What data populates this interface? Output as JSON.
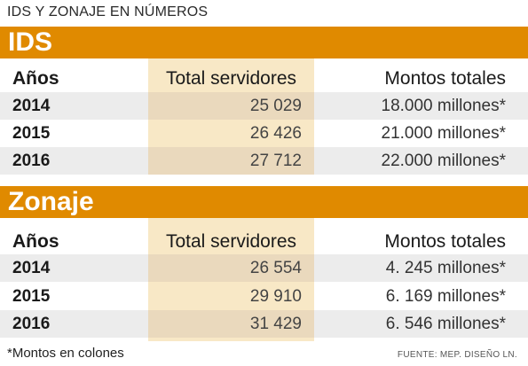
{
  "title": "IDS Y ZONAJE EN NÚMEROS",
  "colors": {
    "accent": "#e08a00",
    "highlight_column": "#f8e8c6",
    "row_shade": "#ececec"
  },
  "chart_data": [
    {
      "type": "table",
      "title": "IDS",
      "columns": [
        "Años",
        "Total servidores",
        "Montos totales"
      ],
      "rows": [
        {
          "year": "2014",
          "servidores": "25 029",
          "montos": "18.000 millones*"
        },
        {
          "year": "2015",
          "servidores": "26 426",
          "montos": "21.000 millones*"
        },
        {
          "year": "2016",
          "servidores": "27 712",
          "montos": "22.000 millones*"
        }
      ]
    },
    {
      "type": "table",
      "title": "Zonaje",
      "columns": [
        "Años",
        "Total servidores",
        "Montos totales"
      ],
      "rows": [
        {
          "year": "2014",
          "servidores": "26 554",
          "montos": "4. 245 millones*"
        },
        {
          "year": "2015",
          "servidores": "29 910",
          "montos": "6. 169 millones*"
        },
        {
          "year": "2016",
          "servidores": "31 429",
          "montos": "6. 546 millones*"
        }
      ]
    }
  ],
  "footnote": "*Montos en colones",
  "source": "FUENTE: MEP. DISEÑO LN."
}
